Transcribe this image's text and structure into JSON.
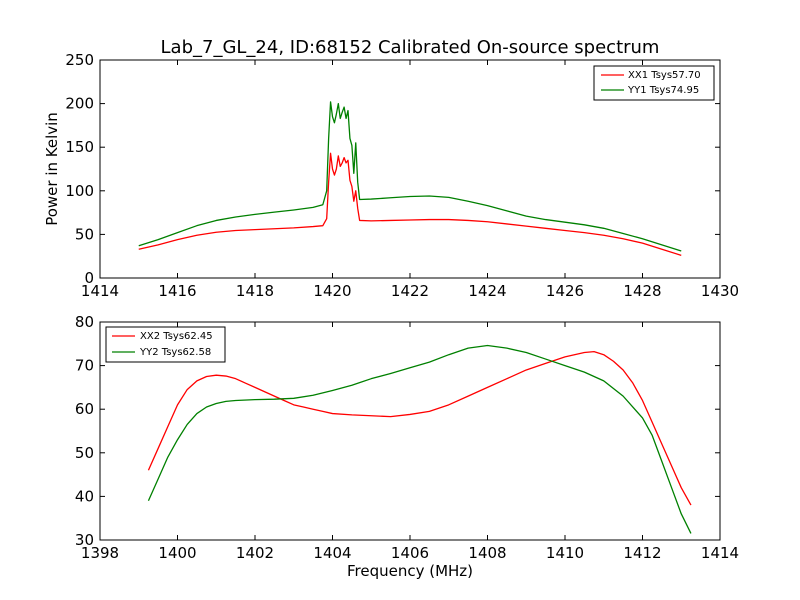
{
  "title": "Lab_7_GL_24, ID:68152 Calibrated On-source spectrum",
  "chart_data": [
    {
      "type": "line",
      "title": "Lab_7_GL_24, ID:68152 Calibrated On-source spectrum",
      "xlabel": "",
      "ylabel": "Power in Kelvin",
      "xlim": [
        1414,
        1430
      ],
      "ylim": [
        0,
        250
      ],
      "xticks": [
        "1414",
        "1416",
        "1418",
        "1420",
        "1422",
        "1424",
        "1426",
        "1428",
        "1430"
      ],
      "yticks": [
        "0",
        "50",
        "100",
        "150",
        "200",
        "250"
      ],
      "grid": false,
      "legend_position": "top-right",
      "series": [
        {
          "name": "XX1 Tsys57.70",
          "color": "#ff0000",
          "points": [
            [
              1415.0,
              33
            ],
            [
              1415.5,
              38
            ],
            [
              1416.0,
              44
            ],
            [
              1416.5,
              49
            ],
            [
              1417.0,
              52.5
            ],
            [
              1417.5,
              54.5
            ],
            [
              1418.0,
              55.5
            ],
            [
              1418.5,
              56.5
            ],
            [
              1419.0,
              57.5
            ],
            [
              1419.5,
              59
            ],
            [
              1419.75,
              60
            ],
            [
              1419.85,
              68
            ],
            [
              1419.9,
              110
            ],
            [
              1419.95,
              143
            ],
            [
              1420.0,
              125
            ],
            [
              1420.05,
              118
            ],
            [
              1420.1,
              125
            ],
            [
              1420.15,
              140
            ],
            [
              1420.2,
              128
            ],
            [
              1420.25,
              132
            ],
            [
              1420.3,
              138
            ],
            [
              1420.35,
              132
            ],
            [
              1420.4,
              135
            ],
            [
              1420.45,
              112
            ],
            [
              1420.5,
              105
            ],
            [
              1420.55,
              88
            ],
            [
              1420.6,
              100
            ],
            [
              1420.65,
              80
            ],
            [
              1420.7,
              66
            ],
            [
              1421.0,
              65.5
            ],
            [
              1421.5,
              66
            ],
            [
              1422.0,
              66.5
            ],
            [
              1422.5,
              67
            ],
            [
              1423.0,
              67
            ],
            [
              1423.5,
              66
            ],
            [
              1424.0,
              64.5
            ],
            [
              1424.5,
              62
            ],
            [
              1425.0,
              59.5
            ],
            [
              1425.5,
              57
            ],
            [
              1426.0,
              54.5
            ],
            [
              1426.5,
              52
            ],
            [
              1427.0,
              49
            ],
            [
              1427.5,
              45
            ],
            [
              1428.0,
              40
            ],
            [
              1428.5,
              33
            ],
            [
              1429.0,
              26
            ]
          ]
        },
        {
          "name": "YY1 Tsys74.95",
          "color": "#008000",
          "points": [
            [
              1415.0,
              37
            ],
            [
              1415.5,
              44
            ],
            [
              1416.0,
              52
            ],
            [
              1416.5,
              60
            ],
            [
              1417.0,
              66
            ],
            [
              1417.5,
              70
            ],
            [
              1418.0,
              73
            ],
            [
              1418.5,
              75.5
            ],
            [
              1419.0,
              78
            ],
            [
              1419.5,
              81
            ],
            [
              1419.75,
              84
            ],
            [
              1419.85,
              100
            ],
            [
              1419.9,
              160
            ],
            [
              1419.95,
              202
            ],
            [
              1420.0,
              185
            ],
            [
              1420.05,
              178
            ],
            [
              1420.1,
              188
            ],
            [
              1420.15,
              200
            ],
            [
              1420.2,
              183
            ],
            [
              1420.25,
              190
            ],
            [
              1420.3,
              196
            ],
            [
              1420.35,
              183
            ],
            [
              1420.4,
              192
            ],
            [
              1420.45,
              160
            ],
            [
              1420.5,
              152
            ],
            [
              1420.55,
              120
            ],
            [
              1420.6,
              155
            ],
            [
              1420.65,
              110
            ],
            [
              1420.7,
              90
            ],
            [
              1421.0,
              90.5
            ],
            [
              1421.5,
              92
            ],
            [
              1422.0,
              93.5
            ],
            [
              1422.5,
              94
            ],
            [
              1423.0,
              92.5
            ],
            [
              1423.5,
              88
            ],
            [
              1424.0,
              83
            ],
            [
              1424.5,
              77
            ],
            [
              1425.0,
              71
            ],
            [
              1425.5,
              67
            ],
            [
              1426.0,
              64
            ],
            [
              1426.5,
              61
            ],
            [
              1427.0,
              57
            ],
            [
              1427.5,
              51
            ],
            [
              1428.0,
              45
            ],
            [
              1428.5,
              38
            ],
            [
              1429.0,
              31
            ]
          ]
        }
      ]
    },
    {
      "type": "line",
      "title": "",
      "xlabel": "Frequency (MHz)",
      "ylabel": "",
      "xlim": [
        1398,
        1414
      ],
      "ylim": [
        30,
        80
      ],
      "xticks": [
        "1398",
        "1400",
        "1402",
        "1404",
        "1406",
        "1408",
        "1410",
        "1412",
        "1414"
      ],
      "yticks": [
        "30",
        "40",
        "50",
        "60",
        "70",
        "80"
      ],
      "grid": false,
      "legend_position": "top-left",
      "series": [
        {
          "name": "XX2 Tsys62.45",
          "color": "#ff0000",
          "points": [
            [
              1399.25,
              46
            ],
            [
              1399.5,
              51
            ],
            [
              1399.75,
              56
            ],
            [
              1400.0,
              61
            ],
            [
              1400.25,
              64.5
            ],
            [
              1400.5,
              66.5
            ],
            [
              1400.75,
              67.5
            ],
            [
              1401.0,
              67.8
            ],
            [
              1401.25,
              67.6
            ],
            [
              1401.5,
              67
            ],
            [
              1401.75,
              66
            ],
            [
              1402.0,
              65
            ],
            [
              1402.25,
              64
            ],
            [
              1402.5,
              63
            ],
            [
              1402.75,
              62
            ],
            [
              1403.0,
              61
            ],
            [
              1403.25,
              60.5
            ],
            [
              1403.5,
              60
            ],
            [
              1403.75,
              59.5
            ],
            [
              1404.0,
              59
            ],
            [
              1404.5,
              58.7
            ],
            [
              1405.0,
              58.5
            ],
            [
              1405.5,
              58.3
            ],
            [
              1406.0,
              58.8
            ],
            [
              1406.5,
              59.5
            ],
            [
              1407.0,
              61
            ],
            [
              1407.5,
              63
            ],
            [
              1408.0,
              65
            ],
            [
              1408.5,
              67
            ],
            [
              1409.0,
              69
            ],
            [
              1409.5,
              70.5
            ],
            [
              1410.0,
              72
            ],
            [
              1410.5,
              73
            ],
            [
              1410.75,
              73.2
            ],
            [
              1411.0,
              72.5
            ],
            [
              1411.25,
              71
            ],
            [
              1411.5,
              69
            ],
            [
              1411.75,
              66
            ],
            [
              1412.0,
              62
            ],
            [
              1412.25,
              57
            ],
            [
              1412.5,
              52
            ],
            [
              1412.75,
              47
            ],
            [
              1413.0,
              42
            ],
            [
              1413.25,
              38
            ]
          ]
        },
        {
          "name": "YY2 Tsys62.58",
          "color": "#008000",
          "points": [
            [
              1399.25,
              39
            ],
            [
              1399.5,
              44
            ],
            [
              1399.75,
              49
            ],
            [
              1400.0,
              53
            ],
            [
              1400.25,
              56.5
            ],
            [
              1400.5,
              59
            ],
            [
              1400.75,
              60.5
            ],
            [
              1401.0,
              61.3
            ],
            [
              1401.25,
              61.8
            ],
            [
              1401.5,
              62
            ],
            [
              1402.0,
              62.2
            ],
            [
              1402.5,
              62.3
            ],
            [
              1403.0,
              62.5
            ],
            [
              1403.5,
              63.2
            ],
            [
              1404.0,
              64.3
            ],
            [
              1404.5,
              65.5
            ],
            [
              1405.0,
              67
            ],
            [
              1405.5,
              68.2
            ],
            [
              1406.0,
              69.5
            ],
            [
              1406.5,
              70.8
            ],
            [
              1407.0,
              72.5
            ],
            [
              1407.5,
              74
            ],
            [
              1408.0,
              74.6
            ],
            [
              1408.5,
              74
            ],
            [
              1409.0,
              73
            ],
            [
              1409.5,
              71.5
            ],
            [
              1410.0,
              70
            ],
            [
              1410.5,
              68.5
            ],
            [
              1411.0,
              66.5
            ],
            [
              1411.5,
              63
            ],
            [
              1412.0,
              58
            ],
            [
              1412.25,
              54
            ],
            [
              1412.5,
              48
            ],
            [
              1412.75,
              42
            ],
            [
              1413.0,
              36
            ],
            [
              1413.25,
              31.5
            ]
          ]
        }
      ]
    }
  ]
}
